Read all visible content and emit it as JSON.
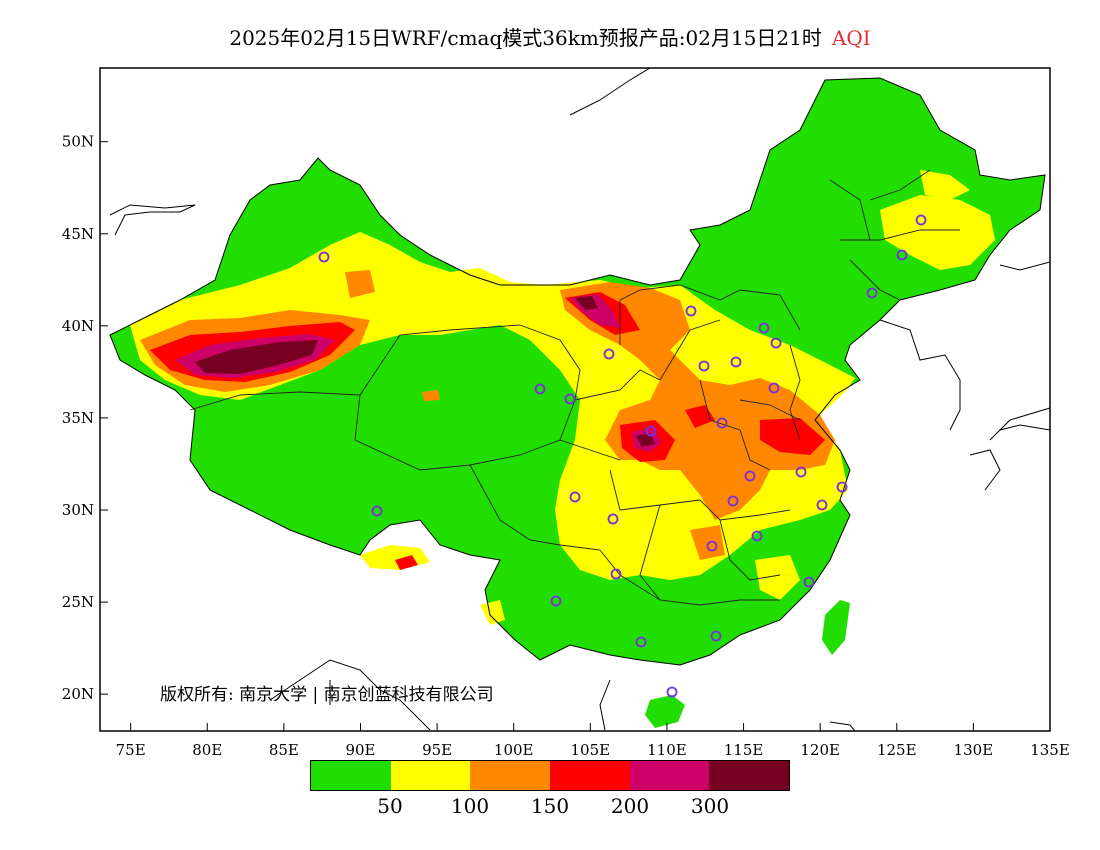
{
  "title": {
    "main": "2025年02月15日WRF/cmaq模式36km预报产品:02月15日21时",
    "variable": "AQI"
  },
  "map": {
    "lon_range": [
      73,
      135
    ],
    "lat_range": [
      18,
      54
    ],
    "x_ticks": [
      {
        "lon": 75,
        "label": "75E"
      },
      {
        "lon": 80,
        "label": "80E"
      },
      {
        "lon": 85,
        "label": "85E"
      },
      {
        "lon": 90,
        "label": "90E"
      },
      {
        "lon": 95,
        "label": "95E"
      },
      {
        "lon": 100,
        "label": "100E"
      },
      {
        "lon": 105,
        "label": "105E"
      },
      {
        "lon": 110,
        "label": "110E"
      },
      {
        "lon": 115,
        "label": "115E"
      },
      {
        "lon": 120,
        "label": "120E"
      },
      {
        "lon": 125,
        "label": "125E"
      },
      {
        "lon": 130,
        "label": "130E"
      },
      {
        "lon": 135,
        "label": "135E"
      }
    ],
    "y_ticks": [
      {
        "lat": 20,
        "label": "20N"
      },
      {
        "lat": 25,
        "label": "25N"
      },
      {
        "lat": 30,
        "label": "30N"
      },
      {
        "lat": 35,
        "label": "35N"
      },
      {
        "lat": 40,
        "label": "40N"
      },
      {
        "lat": 45,
        "label": "45N"
      },
      {
        "lat": 50,
        "label": "50N"
      }
    ],
    "copyright": "版权所有: 南京大学 | 南京创蓝科技有限公司"
  },
  "legend": {
    "colors": [
      "#22dd00",
      "#ffff00",
      "#ff8800",
      "#ff0000",
      "#cc0066",
      "#770022"
    ],
    "labels": [
      "50",
      "100",
      "150",
      "200",
      "300"
    ]
  },
  "colors": {
    "good": "#22dd00",
    "moderate": "#ffff00",
    "usg": "#ff8800",
    "unhealthy": "#ff0000",
    "very_unhealthy": "#cc0066",
    "hazardous": "#770022",
    "station": "#7a30e0"
  }
}
